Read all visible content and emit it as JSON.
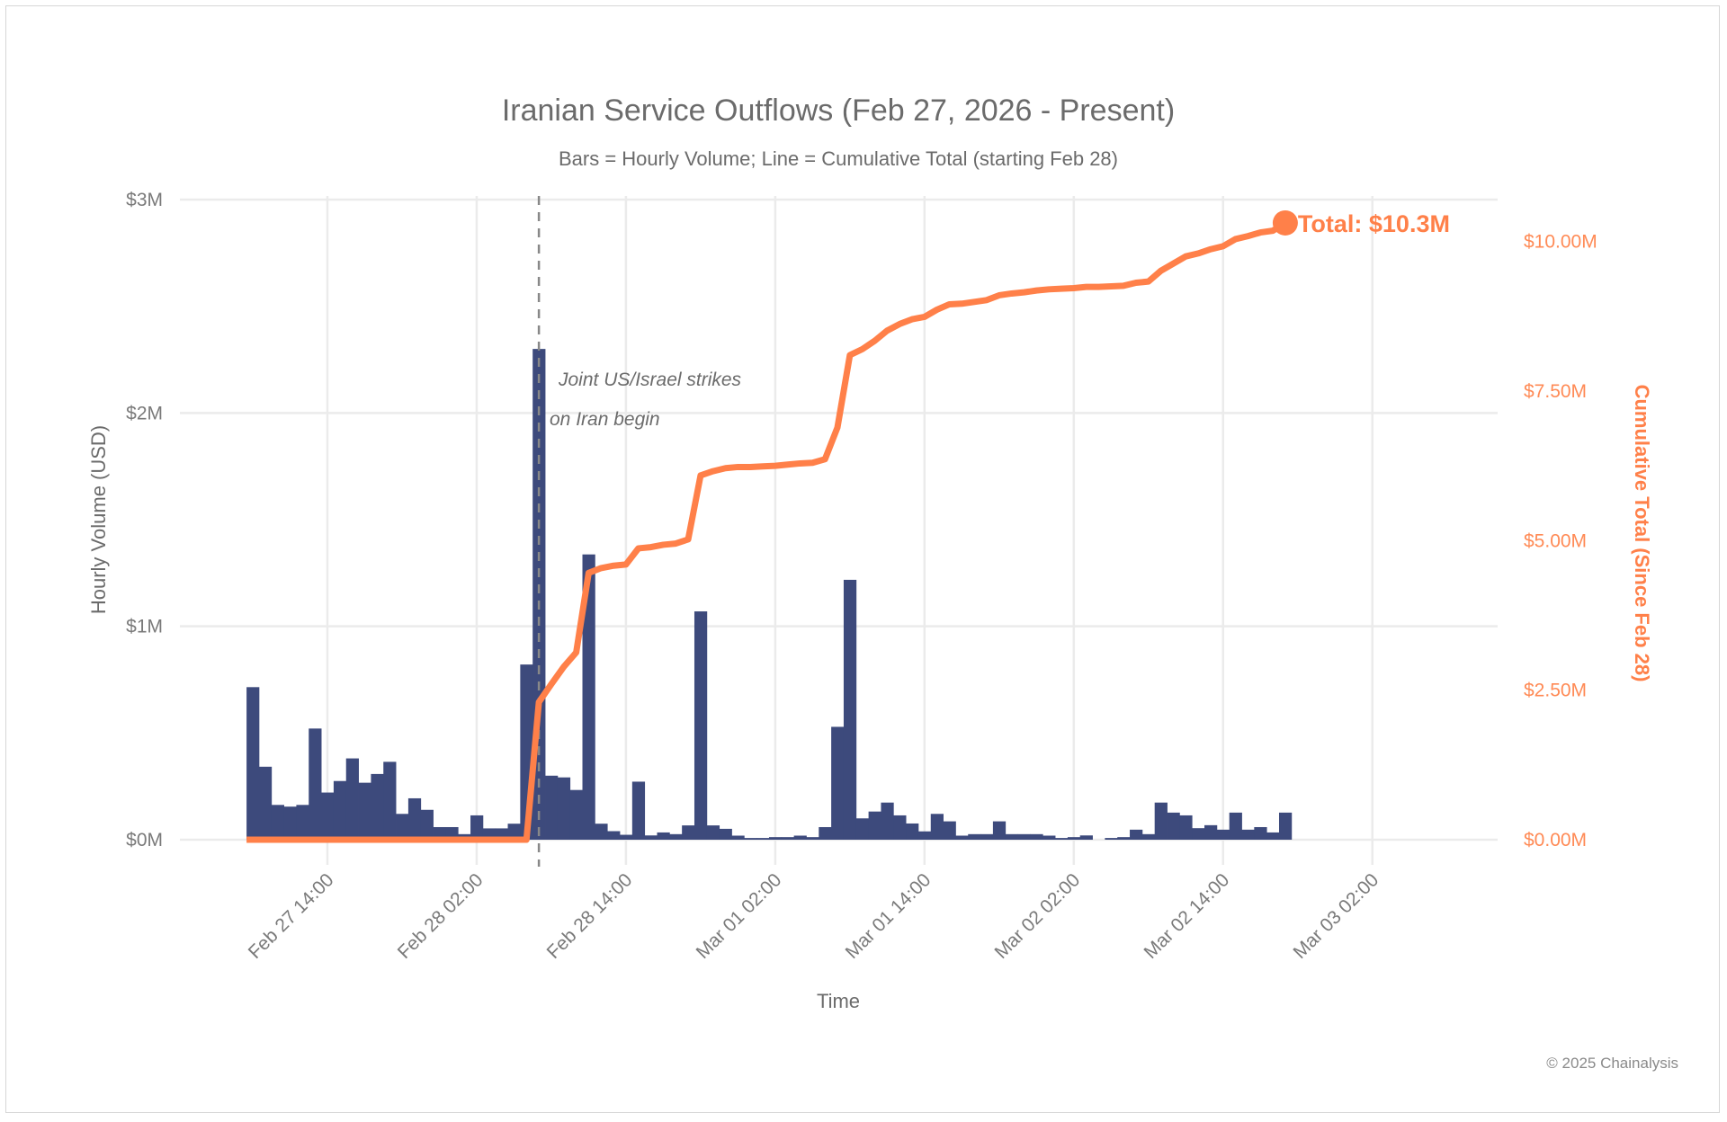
{
  "chart_data": {
    "type": "bar+line",
    "title": "Iranian Service Outflows (Feb 27, 2026 - Present)",
    "subtitle": "Bars = Hourly Volume; Line = Cumulative Total (starting Feb 28)",
    "xlabel": "Time",
    "ylabel_left": "Hourly Volume (USD)",
    "ylabel_right": "Cumulative Total (Since Feb 28)",
    "x_start": "2026-02-27 08:00",
    "x_step": "1 hour",
    "x_ticks": [
      "Feb 27 14:00",
      "Feb 28 02:00",
      "Feb 28 14:00",
      "Mar 01 02:00",
      "Mar 01 14:00",
      "Mar 02 02:00",
      "Mar 02 14:00",
      "Mar 03 02:00"
    ],
    "ylim_left": [
      0,
      3
    ],
    "yticks_left": [
      "$0M",
      "$1M",
      "$2M",
      "$3M"
    ],
    "ylim_right": [
      0,
      10.7
    ],
    "yticks_right": [
      "$0.00M",
      "$2.50M",
      "$5.00M",
      "$7.50M",
      "$10.00M"
    ],
    "yticks_right_values": [
      0,
      2.5,
      5,
      7.5,
      10
    ],
    "grid": true,
    "colors": {
      "bars": "#3d4a7c",
      "line": "#ff8049",
      "text": "#6b6b6b",
      "grid": "#ebebeb"
    },
    "hourly_volume_musd": [
      0.715,
      0.342,
      0.163,
      0.155,
      0.163,
      0.521,
      0.221,
      0.275,
      0.381,
      0.267,
      0.308,
      0.365,
      0.121,
      0.194,
      0.14,
      0.059,
      0.059,
      0.026,
      0.114,
      0.053,
      0.053,
      0.075,
      0.821,
      2.3,
      0.3,
      0.292,
      0.233,
      1.337,
      0.075,
      0.04,
      0.023,
      0.272,
      0.02,
      0.034,
      0.026,
      0.067,
      1.07,
      0.067,
      0.051,
      0.019,
      0.008,
      0.008,
      0.012,
      0.012,
      0.019,
      0.012,
      0.059,
      0.529,
      1.218,
      0.1,
      0.132,
      0.174,
      0.114,
      0.076,
      0.039,
      0.121,
      0.086,
      0.019,
      0.026,
      0.026,
      0.086,
      0.026,
      0.026,
      0.026,
      0.019,
      0.008,
      0.012,
      0.02,
      0,
      0.008,
      0.012,
      0.047,
      0.026,
      0.174,
      0.127,
      0.114,
      0.054,
      0.068,
      0.047,
      0.127,
      0.047,
      0.059,
      0.034,
      0.127
    ],
    "cumulative_musd": [
      0,
      0,
      0,
      0,
      0,
      0,
      0,
      0,
      0,
      0,
      0,
      0,
      0,
      0,
      0,
      0,
      0,
      0,
      0,
      0,
      0,
      0,
      0,
      2.3,
      2.6,
      2.89,
      3.13,
      4.46,
      4.54,
      4.58,
      4.6,
      4.87,
      4.89,
      4.93,
      4.95,
      5.02,
      6.09,
      6.16,
      6.21,
      6.23,
      6.23,
      6.24,
      6.25,
      6.27,
      6.29,
      6.3,
      6.36,
      6.89,
      8.1,
      8.2,
      8.34,
      8.51,
      8.62,
      8.7,
      8.74,
      8.86,
      8.95,
      8.96,
      8.99,
      9.02,
      9.1,
      9.13,
      9.15,
      9.18,
      9.2,
      9.21,
      9.22,
      9.24,
      9.24,
      9.25,
      9.26,
      9.31,
      9.33,
      9.51,
      9.63,
      9.75,
      9.8,
      9.87,
      9.92,
      10.04,
      10.09,
      10.15,
      10.18,
      10.31
    ],
    "event_marker": {
      "time": "Feb 28 07:00",
      "label_line1": "Joint US/Israel strikes",
      "label_line2": "on Iran begin"
    },
    "total_label": "Total: $10.3M"
  },
  "footer": "© 2025 Chainalysis"
}
